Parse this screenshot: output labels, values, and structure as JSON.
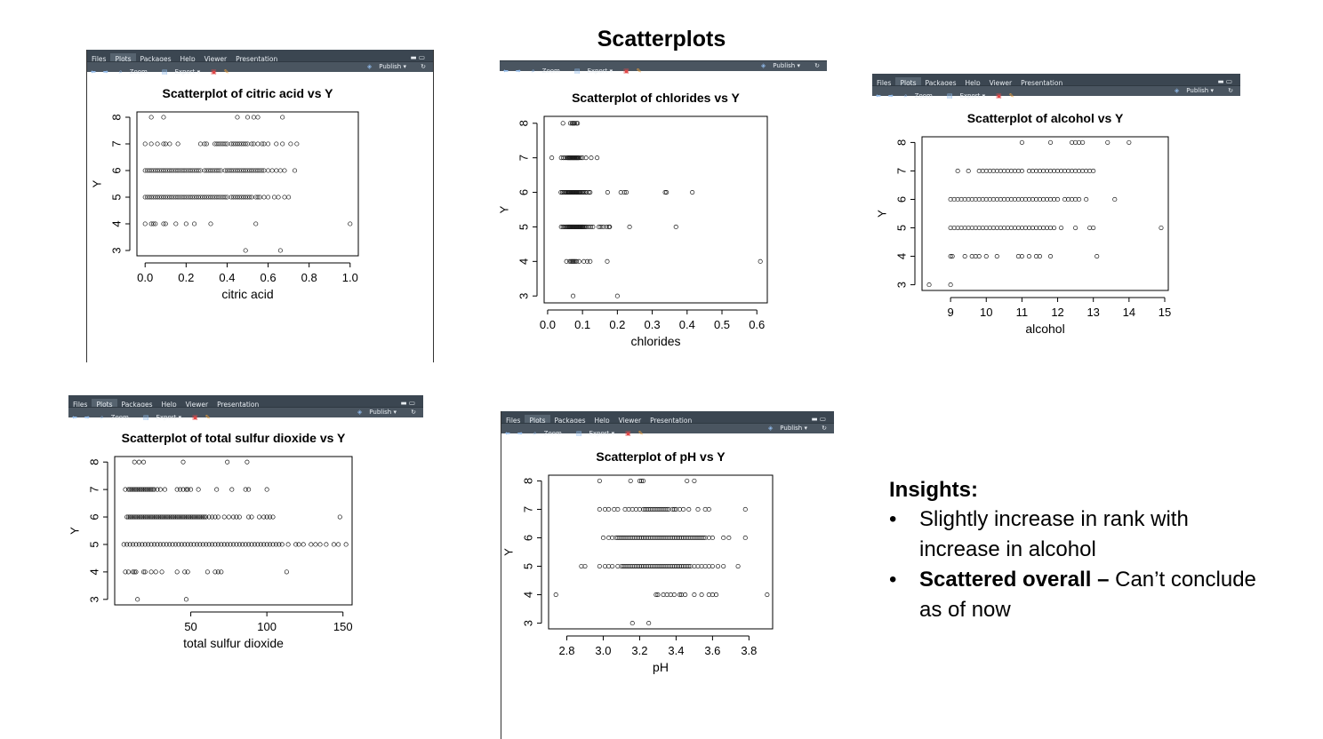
{
  "slide_title": "Scatterplots",
  "ui": {
    "tabs": [
      "Files",
      "Plots",
      "Packages",
      "Help",
      "Viewer",
      "Presentation"
    ],
    "active_tab": "Plots",
    "actions": {
      "zoom": "Zoom",
      "export": "Export",
      "publish": "Publish"
    },
    "colors": {
      "toolbar": "#404b55",
      "points": "#1a1a1a"
    }
  },
  "insights": {
    "heading": "Insights:",
    "bullets": [
      {
        "bold": "",
        "text": "Slightly increase in rank with increase in alcohol"
      },
      {
        "bold": "Scattered overall –",
        "text": " Can’t conclude as of now"
      }
    ]
  },
  "chart_data": [
    {
      "id": "citric",
      "type": "scatter",
      "title": "Scatterplot of citric acid vs Y",
      "xlabel": "citric acid",
      "ylabel": "Y",
      "xlim": [
        -0.04,
        1.04
      ],
      "ylim": [
        2.8,
        8.2
      ],
      "xticks": [
        0.0,
        0.2,
        0.4,
        0.6,
        0.8,
        1.0
      ],
      "xtick_labels": [
        "0.0",
        "0.2",
        "0.4",
        "0.6",
        "0.8",
        "1.0"
      ],
      "yticks": [
        3,
        4,
        5,
        6,
        7,
        8
      ],
      "points": [
        {
          "y": 8,
          "x": [
            0.03,
            0.09,
            0.45,
            0.5,
            0.53,
            0.55,
            0.67
          ]
        },
        {
          "y": 7,
          "x": [
            0.0,
            0.03,
            0.06,
            0.09,
            0.1,
            0.12,
            0.16,
            0.27,
            0.29,
            0.3,
            0.34,
            0.35,
            0.36,
            0.37,
            0.38,
            0.39,
            0.4,
            0.42,
            0.43,
            0.44,
            0.45,
            0.46,
            0.47,
            0.48,
            0.49,
            0.5,
            0.52,
            0.53,
            0.55,
            0.57,
            0.58,
            0.6,
            0.64,
            0.67,
            0.71,
            0.74
          ]
        },
        {
          "y": 6,
          "x": [
            0.0,
            0.01,
            0.02,
            0.03,
            0.04,
            0.05,
            0.06,
            0.07,
            0.08,
            0.09,
            0.1,
            0.11,
            0.12,
            0.13,
            0.14,
            0.15,
            0.16,
            0.17,
            0.18,
            0.19,
            0.2,
            0.21,
            0.22,
            0.23,
            0.24,
            0.25,
            0.26,
            0.27,
            0.29,
            0.3,
            0.31,
            0.32,
            0.33,
            0.34,
            0.35,
            0.36,
            0.37,
            0.39,
            0.4,
            0.41,
            0.42,
            0.43,
            0.44,
            0.45,
            0.46,
            0.47,
            0.48,
            0.49,
            0.5,
            0.51,
            0.52,
            0.53,
            0.54,
            0.55,
            0.56,
            0.57,
            0.58,
            0.6,
            0.62,
            0.64,
            0.66,
            0.68,
            0.73
          ]
        },
        {
          "y": 5,
          "x": [
            0.0,
            0.01,
            0.02,
            0.03,
            0.04,
            0.05,
            0.06,
            0.07,
            0.08,
            0.09,
            0.1,
            0.11,
            0.12,
            0.13,
            0.14,
            0.15,
            0.16,
            0.17,
            0.18,
            0.19,
            0.2,
            0.21,
            0.22,
            0.23,
            0.24,
            0.25,
            0.26,
            0.27,
            0.28,
            0.29,
            0.3,
            0.31,
            0.32,
            0.33,
            0.34,
            0.35,
            0.36,
            0.37,
            0.38,
            0.39,
            0.4,
            0.42,
            0.43,
            0.44,
            0.45,
            0.46,
            0.47,
            0.48,
            0.49,
            0.5,
            0.51,
            0.52,
            0.54,
            0.55,
            0.56,
            0.58,
            0.6,
            0.63,
            0.65,
            0.68,
            0.7
          ]
        },
        {
          "y": 4,
          "x": [
            0.0,
            0.03,
            0.04,
            0.05,
            0.09,
            0.1,
            0.15,
            0.2,
            0.24,
            0.32,
            0.54,
            1.0
          ]
        },
        {
          "y": 3,
          "x": [
            0.49,
            0.66
          ]
        }
      ]
    },
    {
      "id": "chlorides",
      "type": "scatter",
      "title": "Scatterplot of chlorides vs Y",
      "xlabel": "chlorides",
      "ylabel": "Y",
      "xlim": [
        -0.01,
        0.63
      ],
      "ylim": [
        2.8,
        8.2
      ],
      "xticks": [
        0.0,
        0.1,
        0.2,
        0.3,
        0.4,
        0.5,
        0.6
      ],
      "xtick_labels": [
        "0.0",
        "0.1",
        "0.2",
        "0.3",
        "0.4",
        "0.5",
        "0.6"
      ],
      "yticks": [
        3,
        4,
        5,
        6,
        7,
        8
      ],
      "points": [
        {
          "y": 8,
          "x": [
            0.044,
            0.065,
            0.07,
            0.072,
            0.075,
            0.078,
            0.083,
            0.086
          ]
        },
        {
          "y": 7,
          "x": [
            0.012,
            0.039,
            0.045,
            0.05,
            0.055,
            0.058,
            0.06,
            0.062,
            0.064,
            0.066,
            0.068,
            0.07,
            0.072,
            0.074,
            0.076,
            0.078,
            0.08,
            0.082,
            0.084,
            0.086,
            0.088,
            0.09,
            0.095,
            0.1,
            0.11,
            0.125,
            0.142
          ]
        },
        {
          "y": 6,
          "x": [
            0.038,
            0.042,
            0.046,
            0.05,
            0.053,
            0.056,
            0.058,
            0.06,
            0.062,
            0.064,
            0.066,
            0.068,
            0.07,
            0.072,
            0.074,
            0.076,
            0.078,
            0.08,
            0.082,
            0.084,
            0.086,
            0.088,
            0.09,
            0.092,
            0.094,
            0.097,
            0.1,
            0.104,
            0.108,
            0.112,
            0.118,
            0.122,
            0.172,
            0.21,
            0.22,
            0.226,
            0.337,
            0.341,
            0.415
          ]
        },
        {
          "y": 5,
          "x": [
            0.039,
            0.044,
            0.048,
            0.052,
            0.055,
            0.058,
            0.06,
            0.062,
            0.064,
            0.066,
            0.068,
            0.07,
            0.072,
            0.074,
            0.076,
            0.078,
            0.08,
            0.082,
            0.084,
            0.086,
            0.088,
            0.09,
            0.092,
            0.094,
            0.096,
            0.098,
            0.1,
            0.102,
            0.105,
            0.108,
            0.112,
            0.118,
            0.124,
            0.13,
            0.147,
            0.153,
            0.16,
            0.169,
            0.176,
            0.178,
            0.235,
            0.368
          ]
        },
        {
          "y": 4,
          "x": [
            0.054,
            0.063,
            0.067,
            0.07,
            0.073,
            0.076,
            0.079,
            0.083,
            0.09,
            0.104,
            0.114,
            0.122,
            0.171,
            0.61
          ]
        },
        {
          "y": 3,
          "x": [
            0.073,
            0.2
          ]
        }
      ]
    },
    {
      "id": "alcohol",
      "type": "scatter",
      "title": "Scatterplot of alcohol vs Y",
      "xlabel": "alcohol",
      "ylabel": "Y",
      "xlim": [
        8.2,
        15.1
      ],
      "ylim": [
        2.8,
        8.2
      ],
      "xticks": [
        9,
        10,
        11,
        12,
        13,
        14,
        15
      ],
      "xtick_labels": [
        "9",
        "10",
        "11",
        "12",
        "13",
        "14",
        "15"
      ],
      "yticks": [
        3,
        4,
        5,
        6,
        7,
        8
      ],
      "points": [
        {
          "y": 8,
          "x": [
            11.0,
            11.8,
            12.4,
            12.5,
            12.6,
            12.7,
            13.4,
            14.0
          ]
        },
        {
          "y": 7,
          "x": [
            9.2,
            9.5,
            9.8,
            9.9,
            10.0,
            10.1,
            10.2,
            10.3,
            10.4,
            10.5,
            10.6,
            10.7,
            10.8,
            10.9,
            11.0,
            11.2,
            11.3,
            11.4,
            11.5,
            11.6,
            11.7,
            11.8,
            11.9,
            12.0,
            12.1,
            12.2,
            12.3,
            12.4,
            12.5,
            12.6,
            12.7,
            12.8,
            12.9,
            13.0
          ]
        },
        {
          "y": 6,
          "x": [
            9.0,
            9.1,
            9.2,
            9.3,
            9.4,
            9.5,
            9.6,
            9.7,
            9.8,
            9.9,
            10.0,
            10.1,
            10.2,
            10.3,
            10.4,
            10.5,
            10.6,
            10.7,
            10.8,
            10.9,
            11.0,
            11.1,
            11.2,
            11.3,
            11.4,
            11.5,
            11.6,
            11.7,
            11.8,
            11.9,
            12.0,
            12.2,
            12.3,
            12.4,
            12.5,
            12.6,
            12.8,
            13.6
          ]
        },
        {
          "y": 5,
          "x": [
            9.0,
            9.1,
            9.2,
            9.3,
            9.4,
            9.5,
            9.6,
            9.7,
            9.8,
            9.9,
            10.0,
            10.1,
            10.2,
            10.3,
            10.4,
            10.5,
            10.6,
            10.7,
            10.8,
            10.9,
            11.0,
            11.1,
            11.2,
            11.3,
            11.4,
            11.5,
            11.6,
            11.7,
            11.8,
            11.9,
            12.1,
            12.5,
            12.9,
            13.0,
            14.9
          ]
        },
        {
          "y": 4,
          "x": [
            9.0,
            9.05,
            9.4,
            9.6,
            9.7,
            9.8,
            10.0,
            10.3,
            10.9,
            11.0,
            11.2,
            11.4,
            11.5,
            11.8,
            13.1
          ]
        },
        {
          "y": 3,
          "x": [
            8.4,
            9.0
          ]
        }
      ]
    },
    {
      "id": "sulfur",
      "type": "scatter",
      "title": "Scatterplot of total sulfur dioxide vs Y",
      "xlabel": "total sulfur dioxide",
      "ylabel": "Y",
      "xlim": [
        0,
        156
      ],
      "ylim": [
        2.8,
        8.2
      ],
      "xticks": [
        50,
        100,
        150
      ],
      "xtick_labels": [
        "50",
        "100",
        "150"
      ],
      "yticks": [
        3,
        4,
        5,
        6,
        7,
        8
      ],
      "points": [
        {
          "y": 8,
          "x": [
            13,
            16,
            19,
            45,
            74,
            87
          ]
        },
        {
          "y": 7,
          "x": [
            7,
            9,
            10,
            11,
            12,
            13,
            14,
            15,
            16,
            17,
            18,
            19,
            20,
            21,
            22,
            23,
            24,
            25,
            26,
            28,
            30,
            33,
            41,
            43,
            45,
            47,
            48,
            50,
            55,
            67,
            77,
            86,
            88,
            100
          ]
        },
        {
          "y": 6,
          "x": [
            8,
            9,
            10,
            11,
            12,
            13,
            14,
            15,
            16,
            17,
            18,
            19,
            20,
            21,
            22,
            23,
            24,
            25,
            26,
            27,
            28,
            29,
            30,
            31,
            32,
            33,
            34,
            35,
            36,
            37,
            38,
            39,
            40,
            41,
            42,
            43,
            44,
            45,
            46,
            47,
            48,
            49,
            50,
            51,
            52,
            53,
            54,
            55,
            56,
            57,
            58,
            59,
            60,
            62,
            64,
            66,
            68,
            72,
            75,
            78,
            80,
            82,
            88,
            90,
            95,
            98,
            100,
            102,
            104,
            148
          ]
        },
        {
          "y": 5,
          "x": [
            6,
            8,
            10,
            12,
            14,
            16,
            18,
            20,
            22,
            24,
            26,
            28,
            30,
            32,
            34,
            36,
            38,
            40,
            42,
            44,
            46,
            48,
            50,
            52,
            54,
            56,
            58,
            60,
            62,
            64,
            66,
            68,
            70,
            72,
            74,
            76,
            78,
            80,
            82,
            84,
            86,
            88,
            90,
            92,
            94,
            96,
            98,
            100,
            102,
            104,
            106,
            108,
            110,
            114,
            119,
            121,
            124,
            129,
            132,
            135,
            139,
            144,
            147,
            152
          ]
        },
        {
          "y": 4,
          "x": [
            7,
            9,
            12,
            13,
            14,
            19,
            20,
            24,
            27,
            31,
            41,
            46,
            48,
            61,
            66,
            68,
            70,
            113
          ]
        },
        {
          "y": 3,
          "x": [
            15,
            47
          ]
        }
      ]
    },
    {
      "id": "ph",
      "type": "scatter",
      "title": "Scatterplot of pH vs Y",
      "xlabel": "pH",
      "ylabel": "Y",
      "xlim": [
        2.7,
        3.93
      ],
      "ylim": [
        2.8,
        8.2
      ],
      "xticks": [
        2.8,
        3.0,
        3.2,
        3.4,
        3.6,
        3.8
      ],
      "xtick_labels": [
        "2.8",
        "3.0",
        "3.2",
        "3.4",
        "3.6",
        "3.8"
      ],
      "yticks": [
        3,
        4,
        5,
        6,
        7,
        8
      ],
      "points": [
        {
          "y": 8,
          "x": [
            2.98,
            3.15,
            3.2,
            3.21,
            3.22,
            3.46,
            3.5
          ]
        },
        {
          "y": 7,
          "x": [
            2.98,
            3.01,
            3.03,
            3.06,
            3.08,
            3.12,
            3.14,
            3.16,
            3.18,
            3.2,
            3.22,
            3.23,
            3.24,
            3.25,
            3.26,
            3.27,
            3.28,
            3.29,
            3.3,
            3.31,
            3.32,
            3.33,
            3.34,
            3.35,
            3.36,
            3.38,
            3.39,
            3.4,
            3.42,
            3.44,
            3.47,
            3.52,
            3.56,
            3.58,
            3.78
          ]
        },
        {
          "y": 6,
          "x": [
            3.0,
            3.03,
            3.05,
            3.07,
            3.08,
            3.09,
            3.1,
            3.11,
            3.12,
            3.13,
            3.14,
            3.15,
            3.16,
            3.17,
            3.18,
            3.19,
            3.2,
            3.21,
            3.22,
            3.23,
            3.24,
            3.25,
            3.26,
            3.27,
            3.28,
            3.29,
            3.3,
            3.31,
            3.32,
            3.33,
            3.34,
            3.35,
            3.36,
            3.37,
            3.38,
            3.39,
            3.4,
            3.41,
            3.42,
            3.43,
            3.44,
            3.45,
            3.46,
            3.47,
            3.48,
            3.49,
            3.5,
            3.51,
            3.52,
            3.53,
            3.54,
            3.55,
            3.56,
            3.58,
            3.6,
            3.66,
            3.69,
            3.78
          ]
        },
        {
          "y": 5,
          "x": [
            2.88,
            2.9,
            2.98,
            3.01,
            3.03,
            3.05,
            3.08,
            3.1,
            3.11,
            3.12,
            3.13,
            3.14,
            3.15,
            3.16,
            3.17,
            3.18,
            3.19,
            3.2,
            3.21,
            3.22,
            3.23,
            3.24,
            3.25,
            3.26,
            3.27,
            3.28,
            3.29,
            3.3,
            3.31,
            3.32,
            3.33,
            3.34,
            3.35,
            3.36,
            3.37,
            3.38,
            3.39,
            3.4,
            3.41,
            3.42,
            3.43,
            3.44,
            3.45,
            3.46,
            3.47,
            3.48,
            3.5,
            3.52,
            3.54,
            3.56,
            3.58,
            3.6,
            3.63,
            3.66,
            3.74
          ]
        },
        {
          "y": 4,
          "x": [
            2.74,
            3.29,
            3.3,
            3.33,
            3.35,
            3.37,
            3.39,
            3.42,
            3.43,
            3.45,
            3.5,
            3.54,
            3.58,
            3.6,
            3.62,
            3.9
          ]
        },
        {
          "y": 3,
          "x": [
            3.16,
            3.25
          ]
        }
      ]
    }
  ]
}
